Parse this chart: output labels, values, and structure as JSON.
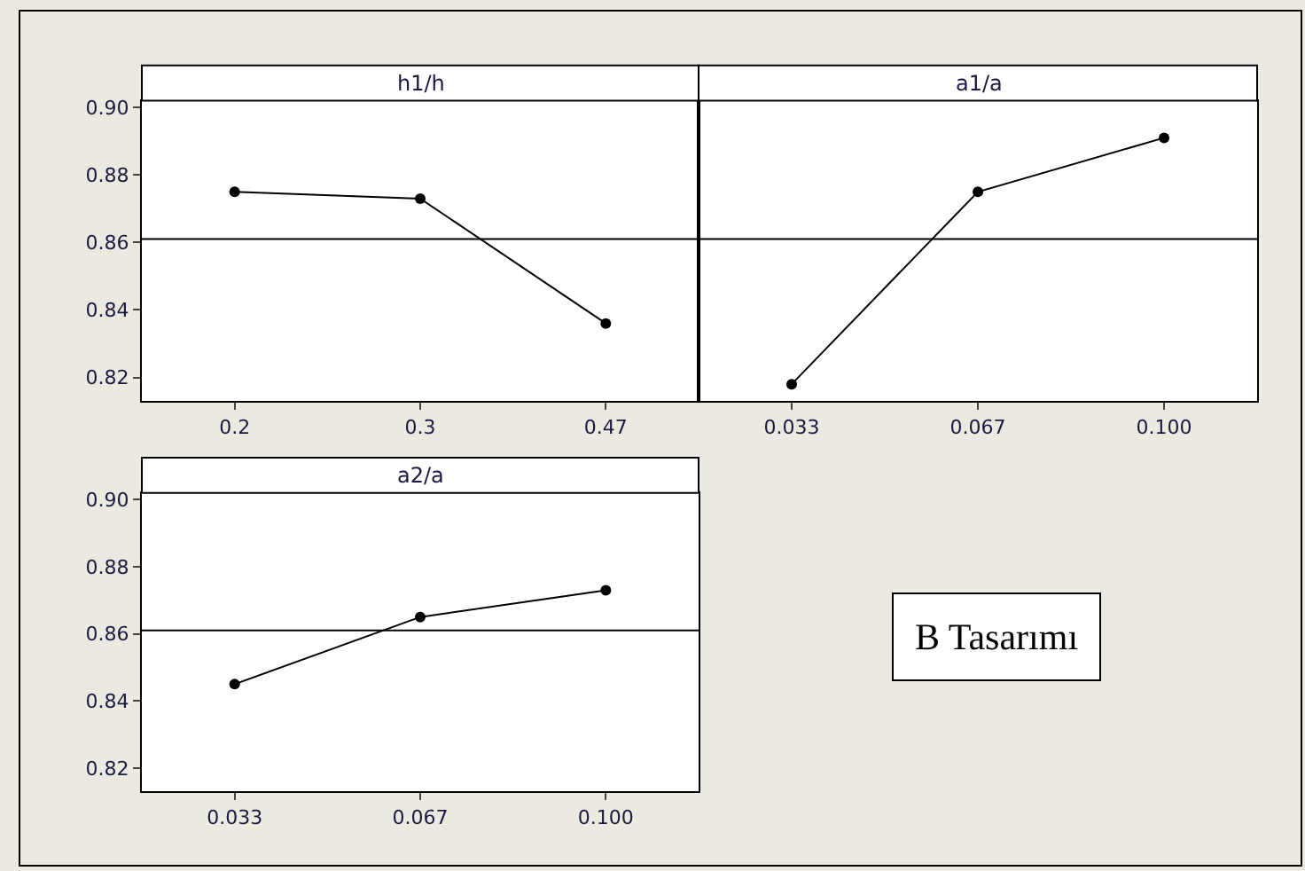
{
  "chart_data": [
    {
      "type": "line",
      "title": "h1/h",
      "categories": [
        "0.2",
        "0.3",
        "0.47"
      ],
      "series": [
        {
          "color": "#000000",
          "values": [
            0.875,
            0.873,
            0.836
          ]
        }
      ],
      "ylim": [
        0.813,
        0.902
      ],
      "yticks": [
        0.82,
        0.84,
        0.86,
        0.88,
        {
          "value": 0.9,
          "label": "0.90"
        }
      ],
      "ref_lines": [
        {
          "axis": "y",
          "value": 0.861,
          "color": "#000000"
        }
      ],
      "marker": "circle",
      "line_style": "solid"
    },
    {
      "type": "line",
      "title": "a1/a",
      "categories": [
        "0.033",
        "0.067",
        "0.100"
      ],
      "series": [
        {
          "color": "#000000",
          "values": [
            0.818,
            0.875,
            0.891
          ]
        }
      ],
      "ylim": [
        0.813,
        0.902
      ],
      "tick_labels": "x",
      "ref_lines": [
        {
          "axis": "y",
          "value": 0.861,
          "color": "#000000"
        }
      ],
      "marker": "circle",
      "line_style": "solid"
    },
    {
      "type": "line",
      "title": "a2/a",
      "categories": [
        "0.033",
        "0.067",
        "0.100"
      ],
      "series": [
        {
          "color": "#000000",
          "values": [
            0.845,
            0.865,
            0.873
          ]
        }
      ],
      "ylim": [
        0.813,
        0.902
      ],
      "yticks": [
        0.82,
        0.84,
        0.86,
        0.88,
        {
          "value": 0.9,
          "label": "0.90"
        }
      ],
      "ref_lines": [
        {
          "axis": "y",
          "value": 0.861,
          "color": "#000000"
        }
      ],
      "marker": "circle",
      "line_style": "solid",
      "annotations": [
        "B Tasarımı"
      ]
    }
  ]
}
